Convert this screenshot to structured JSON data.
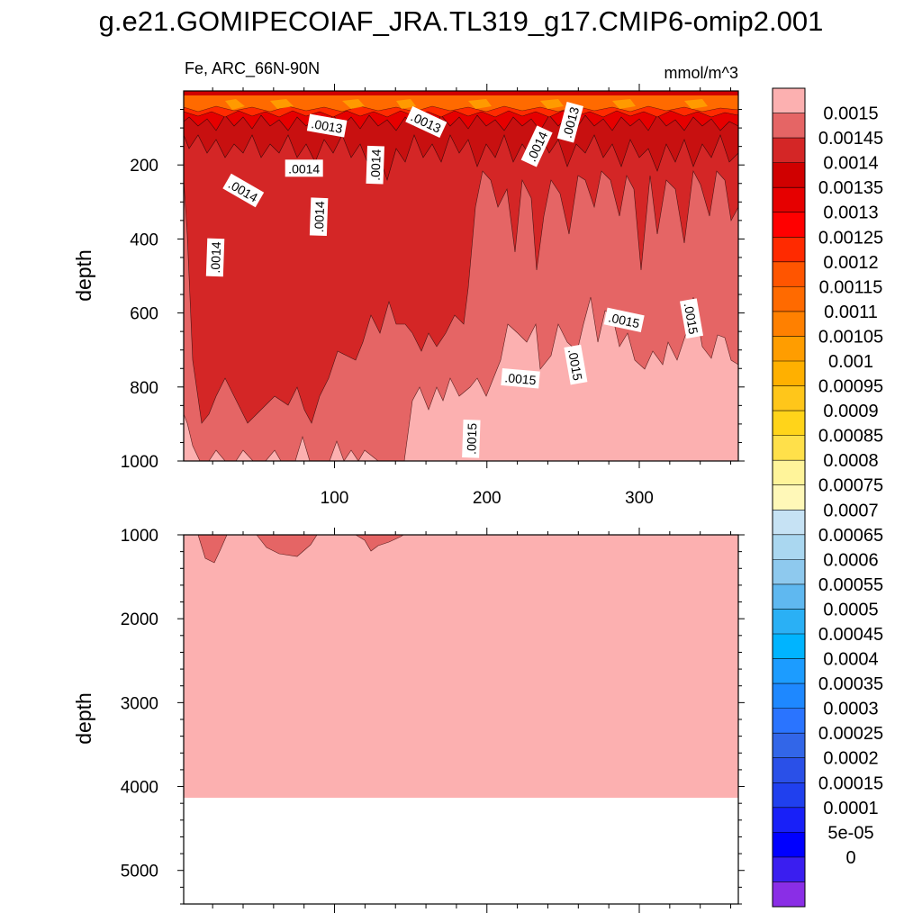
{
  "title": "g.e21.GOMIPECOIAF_JRA.TL319_g17.CMIP6-omip2.001",
  "chart_data": {
    "type": "contour",
    "title": "g.e21.GOMIPECOIAF_JRA.TL319_g17.CMIP6-omip2.001",
    "subtitle_left": "Fe, ARC_66N-90N",
    "units": "mmol/m^3",
    "xlim": [
      1,
      365
    ],
    "x_ticks": [
      "100",
      "200",
      "300"
    ],
    "x_tick_values": [
      100,
      200,
      300
    ],
    "top_panel": {
      "ylabel": "depth",
      "ylim": [
        0,
        1000
      ],
      "y_ticks": [
        "200",
        "400",
        "600",
        "800",
        "1000"
      ],
      "y_tick_values": [
        200,
        400,
        600,
        800,
        1000
      ],
      "contour_labels": [
        {
          "text": ".0013",
          "x": 95,
          "y": 95,
          "rot": 10
        },
        {
          "text": ".0013",
          "x": 160,
          "y": 85,
          "rot": 25
        },
        {
          "text": ".0013",
          "x": 255,
          "y": 85,
          "rot": -75
        },
        {
          "text": ".0014",
          "x": 80,
          "y": 210,
          "rot": 0
        },
        {
          "text": ".0014",
          "x": 127,
          "y": 200,
          "rot": -88
        },
        {
          "text": ".0014",
          "x": 233,
          "y": 150,
          "rot": -65
        },
        {
          "text": ".0014",
          "x": 40,
          "y": 270,
          "rot": 30
        },
        {
          "text": ".0014",
          "x": 90,
          "y": 340,
          "rot": -88
        },
        {
          "text": ".0014",
          "x": 22,
          "y": 450,
          "rot": -88
        },
        {
          "text": ".0015",
          "x": 290,
          "y": 620,
          "rot": 12
        },
        {
          "text": ".0015",
          "x": 334,
          "y": 615,
          "rot": 80
        },
        {
          "text": ".0015",
          "x": 258,
          "y": 740,
          "rot": 80
        },
        {
          "text": ".0015",
          "x": 222,
          "y": 778,
          "rot": 5
        },
        {
          "text": ".0015",
          "x": 190,
          "y": 940,
          "rot": -88
        }
      ]
    },
    "bottom_panel": {
      "ylabel": "depth",
      "ylim": [
        1000,
        5400
      ],
      "y_ticks": [
        "1000",
        "2000",
        "3000",
        "4000",
        "5000"
      ],
      "y_tick_values": [
        1000,
        2000,
        3000,
        4000,
        5000
      ],
      "bottom_depth": 4120
    },
    "colorbar": {
      "labels": [
        "0.0015",
        "0.00145",
        "0.0014",
        "0.00135",
        "0.0013",
        "0.00125",
        "0.0012",
        "0.00115",
        "0.0011",
        "0.00105",
        "0.001",
        "0.00095",
        "0.0009",
        "0.00085",
        "0.0008",
        "0.00075",
        "0.0007",
        "0.00065",
        "0.0006",
        "0.00055",
        "0.0005",
        "0.00045",
        "0.0004",
        "0.00035",
        "0.0003",
        "0.00025",
        "0.0002",
        "0.00015",
        "0.0001",
        "5e-05",
        "0"
      ],
      "colors": [
        "#fcb0b0",
        "#e56565",
        "#d42626",
        "#d00000",
        "#e60000",
        "#ff0000",
        "#ff2a00",
        "#ff5500",
        "#ff6a00",
        "#ff8000",
        "#ff9d00",
        "#ffb000",
        "#ffc61a",
        "#ffd41a",
        "#ffe04a",
        "#fff49a",
        "#fff8b8",
        "#c6e2f4",
        "#aad7f0",
        "#8ec9ee",
        "#5fb8f0",
        "#2ab0f5",
        "#00b4ff",
        "#1c9cff",
        "#1e88ff",
        "#2a74ff",
        "#3266e8",
        "#2a50e8",
        "#2040ee",
        "#1820f8",
        "#0000ff",
        "#3a1ef0",
        "#8a2ee6"
      ]
    }
  }
}
